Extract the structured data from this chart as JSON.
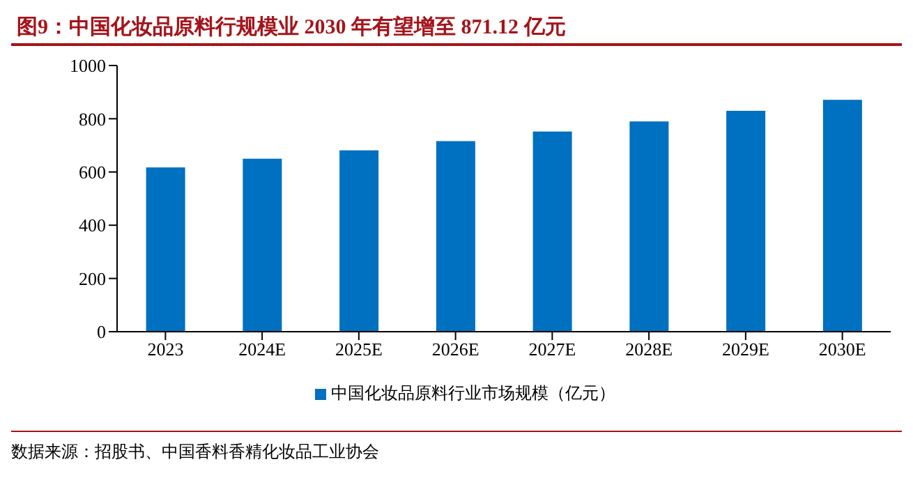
{
  "chart_data": {
    "type": "bar",
    "title": "图9：中国化妆品原料行规模业 2030 年有望增至 871.12 亿元",
    "categories": [
      "2023",
      "2024E",
      "2025E",
      "2026E",
      "2027E",
      "2028E",
      "2029E",
      "2030E"
    ],
    "series": [
      {
        "name": "中国化妆品原料行业市场规模（亿元）",
        "color": "#0070c0",
        "values": [
          617,
          650,
          681,
          716,
          752,
          790,
          830,
          871
        ]
      }
    ],
    "ylim": [
      0,
      1000
    ],
    "yticks": [
      0,
      200,
      400,
      600,
      800,
      1000
    ],
    "grid": false,
    "legend": "bottom",
    "annotations": [
      "数据来源：招股书、中国香料香精化妆品工业协会"
    ]
  }
}
